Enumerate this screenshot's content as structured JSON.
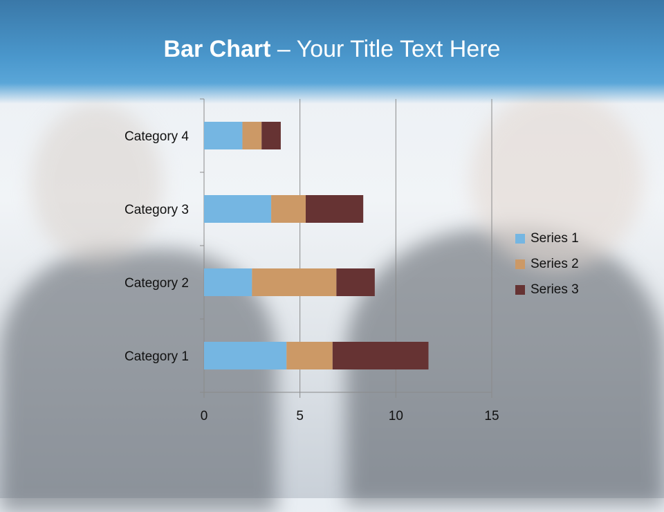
{
  "slide": {
    "title_bold": "Bar Chart",
    "title_rest": " – Your Title Text Here"
  },
  "chart_data": {
    "type": "bar",
    "orientation": "horizontal",
    "stacked": true,
    "categories": [
      "Category 1",
      "Category 2",
      "Category 3",
      "Category 4"
    ],
    "series": [
      {
        "name": "Series 1",
        "color": "#75b6e2",
        "values": [
          4.3,
          2.5,
          3.5,
          2.0
        ]
      },
      {
        "name": "Series 2",
        "color": "#cc9966",
        "values": [
          2.4,
          4.4,
          1.8,
          1.0
        ]
      },
      {
        "name": "Series 3",
        "color": "#663333",
        "values": [
          5.0,
          2.0,
          3.0,
          1.0
        ]
      }
    ],
    "xlim": [
      0,
      15
    ],
    "xticks": [
      "0",
      "5",
      "10",
      "15"
    ],
    "grid": "vertical",
    "legend": "right"
  }
}
